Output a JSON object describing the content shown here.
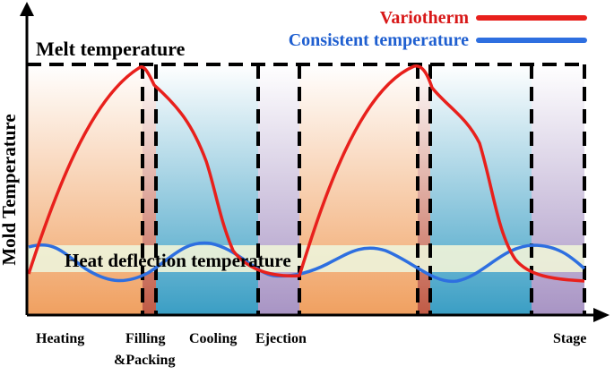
{
  "legend": {
    "variotherm_label": "Variotherm",
    "consistent_label": "Consistent temperature"
  },
  "labels": {
    "melt_temperature": "Melt temperature",
    "heat_deflection_temperature": "Heat deflection temperature",
    "y_axis": "Mold  Temperature",
    "stage": "Stage"
  },
  "phases": {
    "heating": "Heating",
    "filling_line1": "Filling",
    "filling_line2": "&Packing",
    "cooling": "Cooling",
    "ejection": "Ejection"
  },
  "colors": {
    "variotherm": "#e8201c",
    "consistent": "#2e6fe0",
    "heating_zone": "#f2a86a",
    "filling_zone": "#c9634f",
    "cooling_zone": "#4ba7c8",
    "ejection_zone": "#b9a6cc",
    "heat_deflection_band": "#eef2d8"
  }
}
